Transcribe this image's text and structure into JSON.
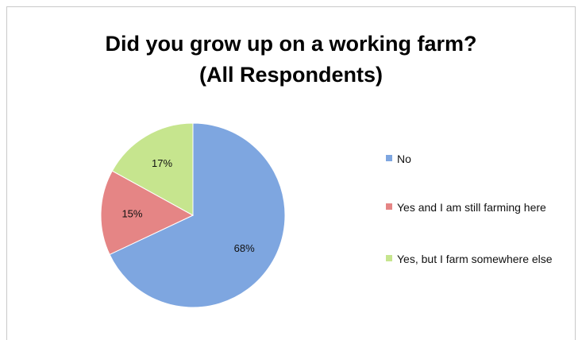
{
  "chart_data": {
    "type": "pie",
    "title": "Did you grow up on a working farm?",
    "subtitle": "(All Respondents)",
    "legend_position": "right",
    "slices": [
      {
        "label": "No",
        "value": 68,
        "display": "68%",
        "color": "#7ea6e0"
      },
      {
        "label": "Yes and I am still farming here",
        "value": 15,
        "display": "15%",
        "color": "#e58585"
      },
      {
        "label": "Yes, but I farm somewhere else",
        "value": 17,
        "display": "17%",
        "color": "#c6e58e"
      }
    ]
  }
}
